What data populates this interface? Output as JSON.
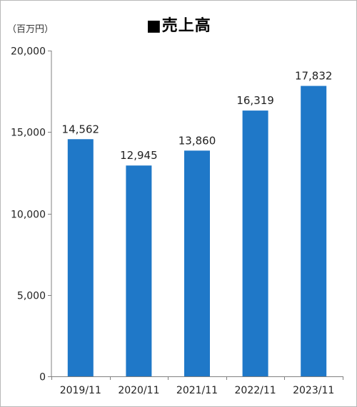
{
  "chart_data": {
    "type": "bar",
    "title": "■売上高",
    "unit_label": "（百万円）",
    "categories": [
      "2019/11",
      "2020/11",
      "2021/11",
      "2022/11",
      "2023/11"
    ],
    "values": [
      14562,
      12945,
      13860,
      16319,
      17832
    ],
    "value_labels": [
      "14,562",
      "12,945",
      "13,860",
      "16,319",
      "17,832"
    ],
    "y_ticks": [
      0,
      5000,
      10000,
      15000,
      20000
    ],
    "y_tick_labels": [
      "0",
      "5,000",
      "10,000",
      "15,000",
      "20,000"
    ],
    "ylim": [
      0,
      20000
    ],
    "xlabel": "",
    "ylabel": "",
    "grid": false,
    "legend": "none",
    "bar_color": "#1f78c8",
    "axis_color": "#808080"
  }
}
